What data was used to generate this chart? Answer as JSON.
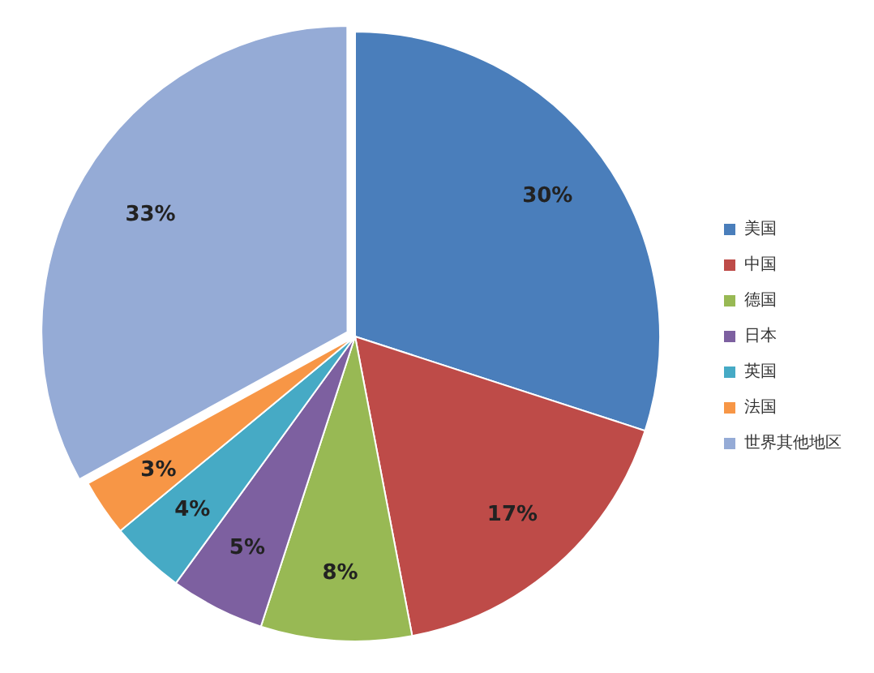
{
  "chart_data": {
    "type": "pie",
    "categories": [
      "美国",
      "中国",
      "德国",
      "日本",
      "英国",
      "法国",
      "世界其他地区"
    ],
    "values": [
      30,
      17,
      8,
      5,
      4,
      3,
      33
    ],
    "colors": [
      "#4a7ebb",
      "#be4b48",
      "#98b954",
      "#7d60a0",
      "#46aac5",
      "#f79646",
      "#95abd6"
    ],
    "value_labels": [
      "30%",
      "17%",
      "8%",
      "5%",
      "4%",
      "3%",
      "33%"
    ],
    "legend": "right"
  }
}
